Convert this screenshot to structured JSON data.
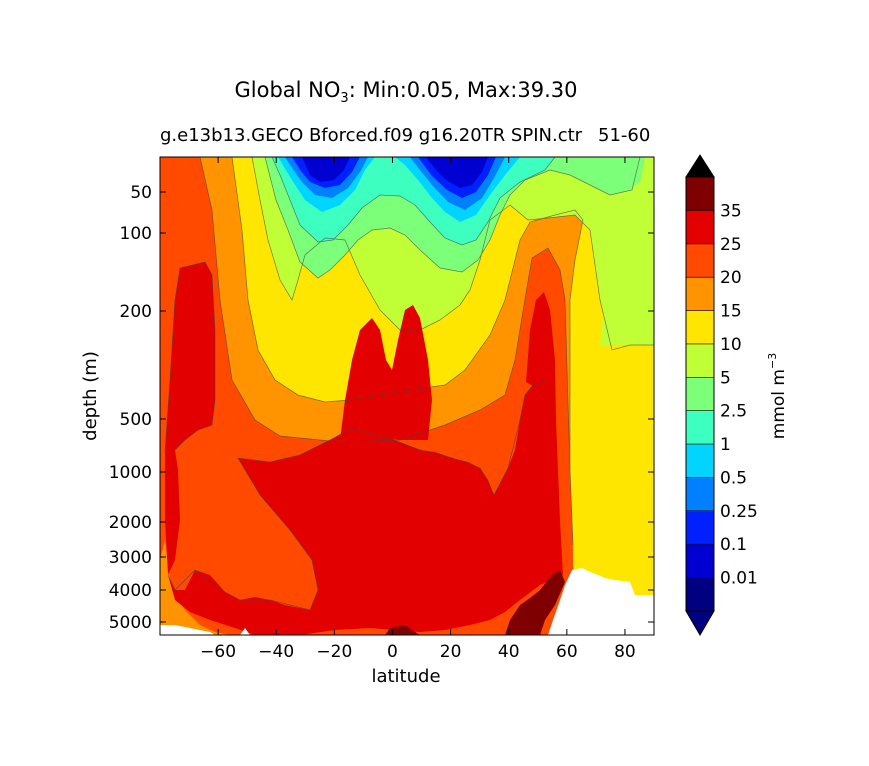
{
  "chart_data": {
    "type": "contour",
    "title_prefix": "Global NO",
    "title_sub": "3",
    "title_suffix": ": Min:0.05, Max:39.30",
    "subtitle": "g.e13b13.GECO Bforced.f09 g16.20TR SPIN.ctr",
    "subtitle_right": "51-60",
    "xlabel": "latitude",
    "ylabel": "depth (m)",
    "xlim": [
      -80,
      90
    ],
    "ylim": [
      5500,
      0
    ],
    "x_ticks": [
      -60,
      -40,
      -20,
      0,
      20,
      40,
      60,
      80
    ],
    "x_tick_labels": [
      "−60",
      "−40",
      "−20",
      "0",
      "20",
      "40",
      "60",
      "80"
    ],
    "y_tick_labels": [
      "50",
      "100",
      "200",
      "500",
      "1000",
      "2000",
      "3000",
      "4000",
      "5000"
    ],
    "colorbar": {
      "label": "mmol m",
      "label_sup": "−3",
      "extend": "both",
      "levels": [
        "0.01",
        "0.1",
        "0.25",
        "0.5",
        "1",
        "2.5",
        "5",
        "10",
        "15",
        "20",
        "25",
        "35"
      ],
      "colors": [
        "#000080",
        "#0000d0",
        "#0020ff",
        "#0080ff",
        "#00d4ff",
        "#3cffc0",
        "#7cff79",
        "#c0ff36",
        "#ffe600",
        "#ff9400",
        "#ff4a00",
        "#e30000",
        "#7f0000"
      ],
      "under_color": "#000080",
      "over_color": "#000000"
    },
    "contour_bands_mmol_m3": [
      {
        "range": "<0.01",
        "color": "#000080"
      },
      {
        "range": "0.01-0.1",
        "color": "#0000d0"
      },
      {
        "range": "0.1-0.25",
        "color": "#0020ff"
      },
      {
        "range": "0.25-0.5",
        "color": "#0080ff"
      },
      {
        "range": "0.5-1",
        "color": "#00d4ff"
      },
      {
        "range": "1-2.5",
        "color": "#3cffc0"
      },
      {
        "range": "2.5-5",
        "color": "#7cff79"
      },
      {
        "range": "5-10",
        "color": "#c0ff36"
      },
      {
        "range": "10-15",
        "color": "#ffe600"
      },
      {
        "range": "15-20",
        "color": "#ff9400"
      },
      {
        "range": "20-25",
        "color": "#ff4a00"
      },
      {
        "range": "25-35",
        "color": "#e30000"
      },
      {
        "range": ">35",
        "color": "#7f0000"
      }
    ],
    "min": 0.05,
    "max": 39.3
  }
}
